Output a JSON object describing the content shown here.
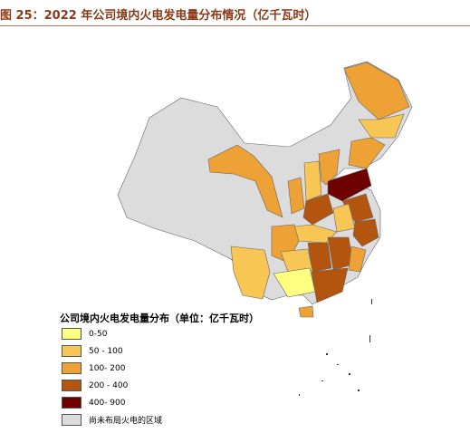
{
  "header": {
    "title": "图 25：2022 年公司境内火电发电量分布情况（亿千瓦时）"
  },
  "legend": {
    "title": "公司境内火电发电量分布（单位：亿千瓦时）",
    "items": [
      {
        "label": "0-50",
        "color": "#ffff80"
      },
      {
        "label": "50 - 100",
        "color": "#f7c654"
      },
      {
        "label": "100- 200",
        "color": "#eea135"
      },
      {
        "label": "200 - 400",
        "color": "#b4550f"
      },
      {
        "label": "400- 900",
        "color": "#6e0000"
      },
      {
        "label": "尚未布局火电的区域",
        "color": "#dcdcdc"
      }
    ]
  }
}
